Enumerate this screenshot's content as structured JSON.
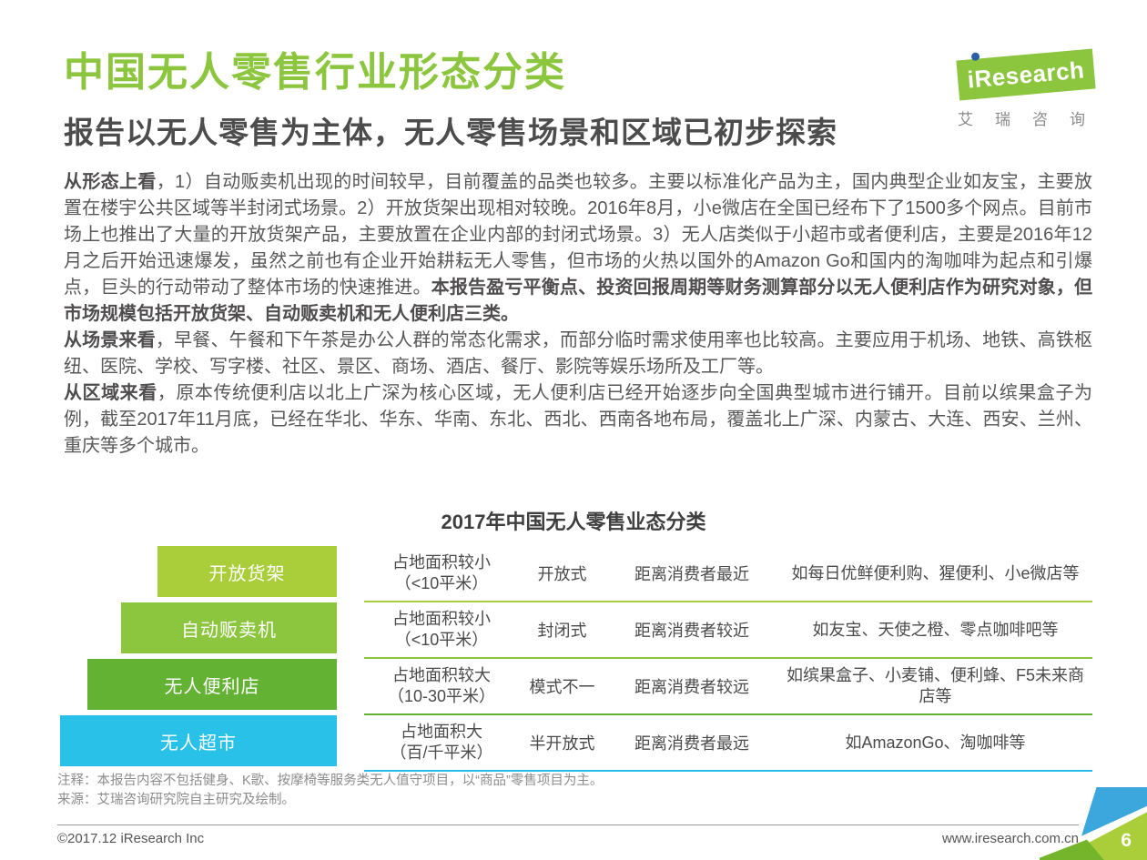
{
  "header": {
    "title": "中国无人零售行业形态分类",
    "subtitle": "报告以无人零售为主体，无人零售场景和区域已初步探索"
  },
  "logo": {
    "brand": "iResearch",
    "caption": "艾瑞咨询"
  },
  "body": {
    "paragraphs": [
      {
        "lead": "从形态上看",
        "text": "，1）自动贩卖机出现的时间较早，目前覆盖的品类也较多。主要以标准化产品为主，国内典型企业如友宝，主要放置在楼宇公共区域等半封闭式场景。2）开放货架出现相对较晚。2016年8月，小e微店在全国已经布下了1500多个网点。目前市场上也推出了大量的开放货架产品，主要放置在企业内部的封闭式场景。3）无人店类似于小超市或者便利店，主要是2016年12月之后开始迅速爆发，虽然之前也有企业开始耕耘无人零售，但市场的火热以国外的Amazon Go和国内的淘咖啡为起点和引爆点，巨头的行动带动了整体市场的快速推进。",
        "emph": "本报告盈亏平衡点、投资回报周期等财务测算部分以无人便利店作为研究对象，但市场规模包括开放货架、自动贩卖机和无人便利店三类。"
      },
      {
        "lead": "从场景来看",
        "text": "，早餐、午餐和下午茶是办公人群的常态化需求，而部分临时需求使用率也比较高。主要应用于机场、地铁、高铁枢纽、医院、学校、写字楼、社区、景区、商场、酒店、餐厅、影院等娱乐场所及工厂等。",
        "emph": ""
      },
      {
        "lead": "从区域来看",
        "text": "，原本传统便利店以北上广深为核心区域，无人便利店已经开始逐步向全国典型城市进行铺开。目前以缤果盒子为例，截至2017年11月底，已经在华北、华东、华南、东北、西北、西南各地布局，覆盖北上广深、内蒙古、大连、西安、兰州、重庆等多个城市。",
        "emph": ""
      }
    ]
  },
  "chart_data": {
    "type": "table",
    "title": "2017年中国无人零售业态分类",
    "rows": [
      {
        "label": "开放货架",
        "color": "#a9ce39",
        "area_l1": "占地面积较小",
        "area_l2": "（<10平米）",
        "mode": "开放式",
        "distance": "距离消费者最近",
        "examples": "如每日优鲜便利购、猩便利、小e微店等"
      },
      {
        "label": "自动贩卖机",
        "color": "#8cc63f",
        "area_l1": "占地面积较小",
        "area_l2": "（<10平米）",
        "mode": "封闭式",
        "distance": "距离消费者较近",
        "examples": "如友宝、天使之橙、零点咖啡吧等"
      },
      {
        "label": "无人便利店",
        "color": "#63b234",
        "area_l1": "占地面积较大",
        "area_l2": "（10-30平米）",
        "mode": "模式不一",
        "distance": "距离消费者较远",
        "examples": "如缤果盒子、小麦铺、便利蜂、F5未来商店等"
      },
      {
        "label": "无人超市",
        "color": "#29c1e8",
        "area_l1": "占地面积大",
        "area_l2": "（百/千平米）",
        "mode": "半开放式",
        "distance": "距离消费者最远",
        "examples": "如AmazonGo、淘咖啡等"
      }
    ]
  },
  "notes": {
    "note": "注释：本报告内容不包括健身、K歌、按摩椅等服务类无人值守项目，以“商品”零售项目为主。",
    "source": "来源：艾瑞咨询研究院自主研究及绘制。"
  },
  "footer": {
    "copyright": "©2017.12 iResearch Inc",
    "website": "www.iresearch.com.cn",
    "page_number": "6"
  },
  "colors": {
    "brand_green": "#8cc63f",
    "accent_blue": "#3ba7dd",
    "logo_dot_blue": "#2a5fa8",
    "row_colors": [
      "#a9ce39",
      "#8cc63f",
      "#63b234",
      "#29c1e8"
    ]
  }
}
